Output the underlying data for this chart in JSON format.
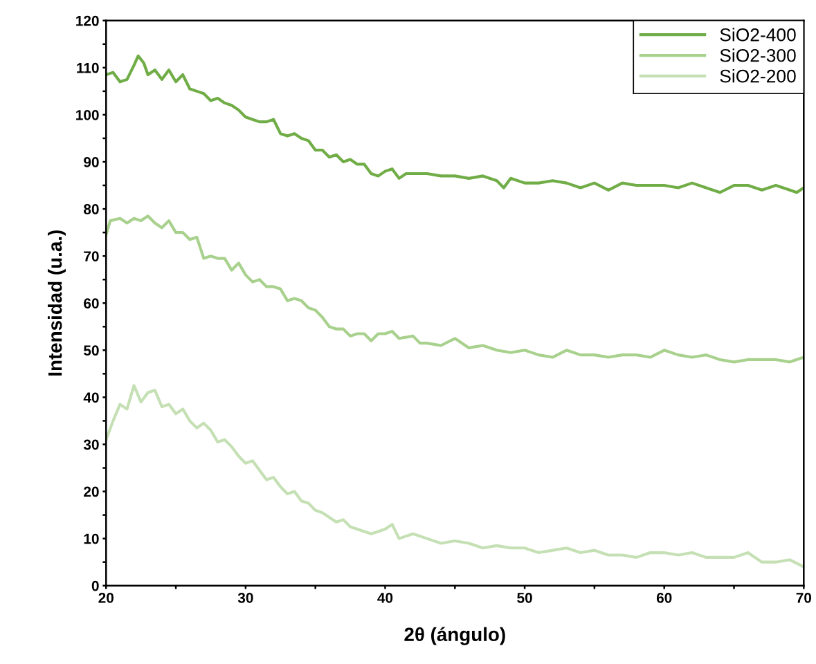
{
  "chart_data": {
    "type": "line",
    "xlabel": "2θ (ángulo)",
    "ylabel": "Intensidad (u.a.)",
    "xlim": [
      20,
      70
    ],
    "ylim": [
      0,
      120
    ],
    "xticks": [
      20,
      {
        "value": 25,
        "label": null
      },
      30,
      {
        "value": 35,
        "label": null
      },
      40,
      {
        "value": 45,
        "label": null
      },
      50,
      {
        "value": 55,
        "label": null
      },
      60,
      {
        "value": 65,
        "label": null
      },
      70
    ],
    "yticks": [
      0,
      {
        "value": 5,
        "label": null
      },
      10,
      {
        "value": 15,
        "label": null
      },
      20,
      {
        "value": 25,
        "label": null
      },
      30,
      {
        "value": 35,
        "label": null
      },
      40,
      {
        "value": 45,
        "label": null
      },
      50,
      {
        "value": 55,
        "label": null
      },
      60,
      {
        "value": 65,
        "label": null
      },
      70,
      {
        "value": 75,
        "label": null
      },
      80,
      {
        "value": 85,
        "label": null
      },
      90,
      {
        "value": 95,
        "label": null
      },
      100,
      {
        "value": 105,
        "label": null
      },
      110,
      {
        "value": 115,
        "label": null
      },
      120
    ],
    "grid": false,
    "legend": "top right",
    "marker": "none",
    "line_style": "solid",
    "series": [
      {
        "name": "SiO2-400",
        "color": "#70ad47",
        "x": [
          20,
          20.5,
          21,
          21.5,
          22,
          22.3,
          22.7,
          23,
          23.5,
          24,
          24.5,
          25,
          25.5,
          26,
          26.5,
          27,
          27.5,
          28,
          28.5,
          29,
          29.5,
          30,
          30.5,
          31,
          31.5,
          32,
          32.5,
          33,
          33.5,
          34,
          34.5,
          35,
          35.5,
          36,
          36.5,
          37,
          37.5,
          38,
          38.5,
          39,
          39.5,
          40,
          40.5,
          41,
          41.5,
          42,
          43,
          44,
          45,
          46,
          47,
          48,
          48.5,
          49,
          50,
          51,
          52,
          53,
          54,
          55,
          56,
          57,
          58,
          59,
          60,
          61,
          62,
          63,
          64,
          65,
          66,
          67,
          68,
          69,
          69.5,
          70
        ],
        "values": [
          108.5,
          109,
          107,
          107.5,
          110.5,
          112.5,
          111,
          108.5,
          109.5,
          107.5,
          109.5,
          107,
          108.5,
          105.5,
          105,
          104.5,
          103,
          103.5,
          102.5,
          102,
          101,
          99.5,
          99,
          98.5,
          98.5,
          99,
          96,
          95.5,
          96,
          95,
          94.5,
          92.5,
          92.5,
          91,
          91.5,
          90,
          90.5,
          89.5,
          89.5,
          87.5,
          87,
          88,
          88.5,
          86.5,
          87.5,
          87.5,
          87.5,
          87,
          87,
          86.5,
          87,
          86,
          84.5,
          86.5,
          85.5,
          85.5,
          86,
          85.5,
          84.5,
          85.5,
          84,
          85.5,
          85,
          85,
          85,
          84.5,
          85.5,
          84.5,
          83.5,
          85,
          85,
          84,
          85,
          84,
          83.5,
          84.5
        ]
      },
      {
        "name": "SiO2-300",
        "color": "#a9d18e",
        "x": [
          20,
          20.3,
          21,
          21.5,
          22,
          22.5,
          23,
          23.5,
          24,
          24.5,
          25,
          25.5,
          26,
          26.5,
          27,
          27.5,
          28,
          28.5,
          29,
          29.5,
          30,
          30.5,
          31,
          31.5,
          32,
          32.5,
          33,
          33.5,
          34,
          34.5,
          35,
          35.5,
          36,
          36.5,
          37,
          37.5,
          38,
          38.5,
          39,
          39.5,
          40,
          40.5,
          41,
          42,
          42.5,
          43,
          44,
          45,
          46,
          47,
          48,
          49,
          50,
          51,
          52,
          53,
          54,
          55,
          56,
          57,
          58,
          59,
          60,
          61,
          62,
          63,
          64,
          65,
          66,
          67,
          68,
          69,
          70
        ],
        "values": [
          74.5,
          77.5,
          78,
          77,
          78,
          77.5,
          78.5,
          77,
          76,
          77.5,
          75,
          75,
          73.5,
          74,
          69.5,
          70,
          69.5,
          69.5,
          67,
          68.5,
          66,
          64.5,
          65,
          63.5,
          63.5,
          63,
          60.5,
          61,
          60.5,
          59,
          58.5,
          57,
          55,
          54.5,
          54.5,
          53,
          53.5,
          53.5,
          52,
          53.5,
          53.5,
          54,
          52.5,
          53,
          51.5,
          51.5,
          51,
          52.5,
          50.5,
          51,
          50,
          49.5,
          50,
          49,
          48.5,
          50,
          49,
          49,
          48.5,
          49,
          49,
          48.5,
          50,
          49,
          48.5,
          49,
          48,
          47.5,
          48,
          48,
          48,
          47.5,
          48.5
        ]
      },
      {
        "name": "SiO2-200",
        "color": "#c5e0b4",
        "x": [
          20,
          20.5,
          21,
          21.5,
          22,
          22.5,
          23,
          23.5,
          24,
          24.5,
          25,
          25.5,
          26,
          26.5,
          27,
          27.5,
          28,
          28.5,
          29,
          29.5,
          30,
          30.5,
          31,
          31.5,
          32,
          32.5,
          33,
          33.5,
          34,
          34.5,
          35,
          35.5,
          36,
          36.5,
          37,
          37.5,
          38,
          39,
          39.5,
          40,
          40.5,
          41,
          42,
          43,
          44,
          45,
          46,
          47,
          48,
          49,
          50,
          51,
          52,
          53,
          54,
          55,
          56,
          57,
          58,
          59,
          60,
          61,
          62,
          63,
          64,
          65,
          66,
          67,
          68,
          69,
          70
        ],
        "values": [
          31,
          35,
          38.5,
          37.5,
          42.5,
          39,
          41,
          41.5,
          38,
          38.5,
          36.5,
          37.5,
          35,
          33.5,
          34.5,
          33,
          30.5,
          31,
          29.5,
          27.5,
          26,
          26.5,
          24.5,
          22.5,
          23,
          21,
          19.5,
          20,
          18,
          17.5,
          16,
          15.5,
          14.5,
          13.5,
          14,
          12.5,
          12,
          11,
          11.5,
          12,
          13,
          10,
          11,
          10,
          9,
          9.5,
          9,
          8,
          8.5,
          8,
          8,
          7,
          7.5,
          8,
          7,
          7.5,
          6.5,
          6.5,
          6,
          7,
          7,
          6.5,
          7,
          6,
          6,
          6,
          7,
          5,
          5,
          5.5,
          4
        ]
      }
    ]
  }
}
